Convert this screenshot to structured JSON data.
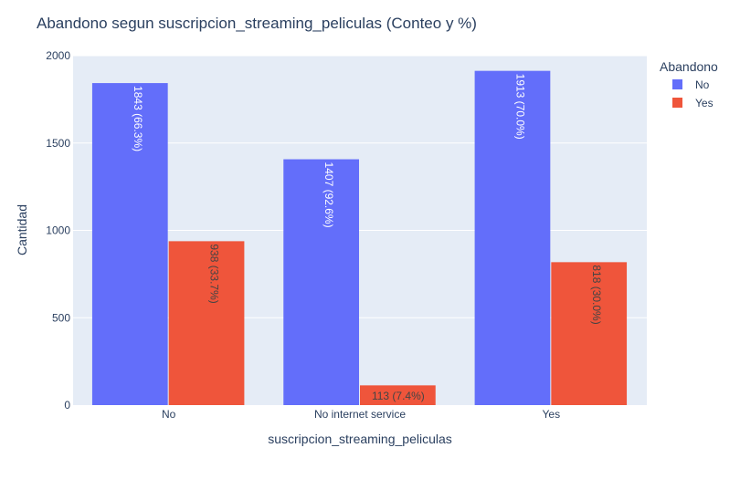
{
  "chart_data": {
    "type": "bar",
    "title": "Abandono segun suscripcion_streaming_peliculas (Conteo y %)",
    "xlabel": "suscripcion_streaming_peliculas",
    "ylabel": "Cantidad",
    "categories": [
      "No",
      "No internet service",
      "Yes"
    ],
    "ylim": [
      0,
      2000
    ],
    "yticks": [
      0,
      500,
      1000,
      1500,
      2000
    ],
    "grid": true,
    "legend": {
      "title": "Abandono",
      "placement": "top-right"
    },
    "series": [
      {
        "name": "No",
        "color": "#636efa",
        "values": [
          1843,
          1407,
          1913
        ],
        "labels": [
          "1843 (66.3%)",
          "1407 (92.6%)",
          "1913 (70.0%)"
        ]
      },
      {
        "name": "Yes",
        "color": "#ef553b",
        "values": [
          938,
          113,
          818
        ],
        "labels": [
          "938 (33.7%)",
          "113 (7.4%)",
          "818 (30.0%)"
        ]
      }
    ],
    "colors": {
      "plot_background": "#e5ecf6",
      "grid": "#ffffff",
      "text": "#2a3f5f"
    }
  }
}
